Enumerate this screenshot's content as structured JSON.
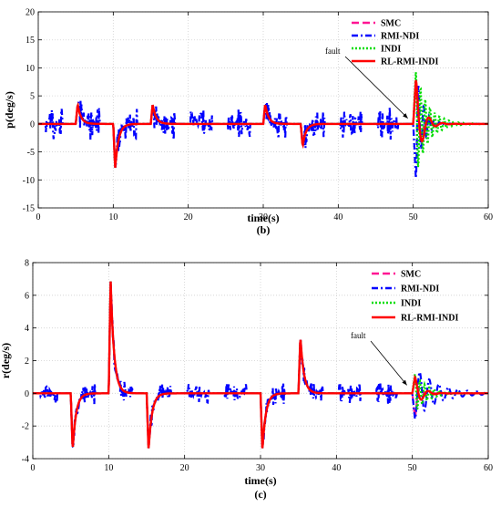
{
  "chart_data": [
    {
      "type": "line",
      "panel_label": "(b)",
      "xlabel": "time(s)",
      "ylabel": "p(deg/s)",
      "xlim": [
        0,
        60
      ],
      "ylim": [
        -15,
        20
      ],
      "xticks": [
        0,
        10,
        20,
        30,
        40,
        50,
        60
      ],
      "yticks": [
        -15,
        -10,
        -5,
        0,
        5,
        10,
        15,
        20
      ],
      "grid": true,
      "legend_position": "top-right",
      "annotation": {
        "text": "fault",
        "at_x": 50
      },
      "series": [
        {
          "name": "SMC",
          "color": "#ff1493",
          "style": "dashed"
        },
        {
          "name": "RMI-NDI",
          "color": "#0000ff",
          "style": "dashdot"
        },
        {
          "name": "INDI",
          "color": "#00dd00",
          "style": "dotted"
        },
        {
          "name": "RL-RMI-INDI",
          "color": "#ff0000",
          "style": "solid"
        }
      ],
      "events": [
        {
          "t": 5,
          "peak": 3.5
        },
        {
          "t": 10,
          "peak": -8
        },
        {
          "t": 15,
          "peak": 3.5
        },
        {
          "t": 30,
          "peak": 3.5
        },
        {
          "t": 35,
          "peak": -4
        },
        {
          "t": 50,
          "peak": 8
        }
      ],
      "fault_time": 50,
      "fault_peaks": {
        "SMC": 8,
        "RMI-NDI": -10,
        "INDI": 9.5,
        "RL-RMI-INDI": 8
      }
    },
    {
      "type": "line",
      "panel_label": "(c)",
      "xlabel": "time(s)",
      "ylabel": "r(deg/s)",
      "xlim": [
        0,
        60
      ],
      "ylim": [
        -4,
        8
      ],
      "xticks": [
        0,
        10,
        20,
        30,
        40,
        50,
        60
      ],
      "yticks": [
        -4,
        -2,
        0,
        2,
        4,
        6,
        8
      ],
      "grid": true,
      "legend_position": "top-right",
      "annotation": {
        "text": "fault",
        "at_x": 50
      },
      "series": [
        {
          "name": "SMC",
          "color": "#ff1493",
          "style": "dashed"
        },
        {
          "name": "RMI-NDI",
          "color": "#0000ff",
          "style": "dashdot"
        },
        {
          "name": "INDI",
          "color": "#00dd00",
          "style": "dotted"
        },
        {
          "name": "RL-RMI-INDI",
          "color": "#ff0000",
          "style": "solid"
        }
      ],
      "events": [
        {
          "t": 5,
          "peak": -3.5
        },
        {
          "t": 10,
          "peak": 7
        },
        {
          "t": 15,
          "peak": -3.5
        },
        {
          "t": 30,
          "peak": -3.5
        },
        {
          "t": 35,
          "peak": 3.5
        }
      ],
      "fault_time": 50,
      "fault_peaks": {
        "SMC": -1.5,
        "RMI-NDI": -1.6,
        "INDI": 1.2,
        "RL-RMI-INDI": 1.0
      }
    }
  ]
}
